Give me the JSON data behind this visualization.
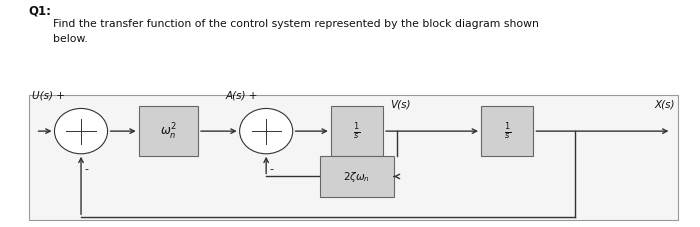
{
  "title_q": "Q1:",
  "subtitle": "Find the transfer function of the control system represented by the block diagram shown\nbelow.",
  "bg_color": "#ffffff",
  "diagram_bg": "#f5f5f5",
  "box_color": "#d0d0d0",
  "box_edge_color": "#666666",
  "line_color": "#333333",
  "text_color": "#111111",
  "box1_label": "$\\omega_n^2$",
  "box2_label": "$\\frac{1}{s}$",
  "box3_label": "$\\frac{1}{s}$",
  "box_feedback_label": "$2\\zeta\\omega_n$",
  "label_Us": "U(s) +",
  "label_As": "A(s) +",
  "label_Vs": "V(s)",
  "label_Xs": "X(s)",
  "minus1": "-",
  "minus2": "-"
}
